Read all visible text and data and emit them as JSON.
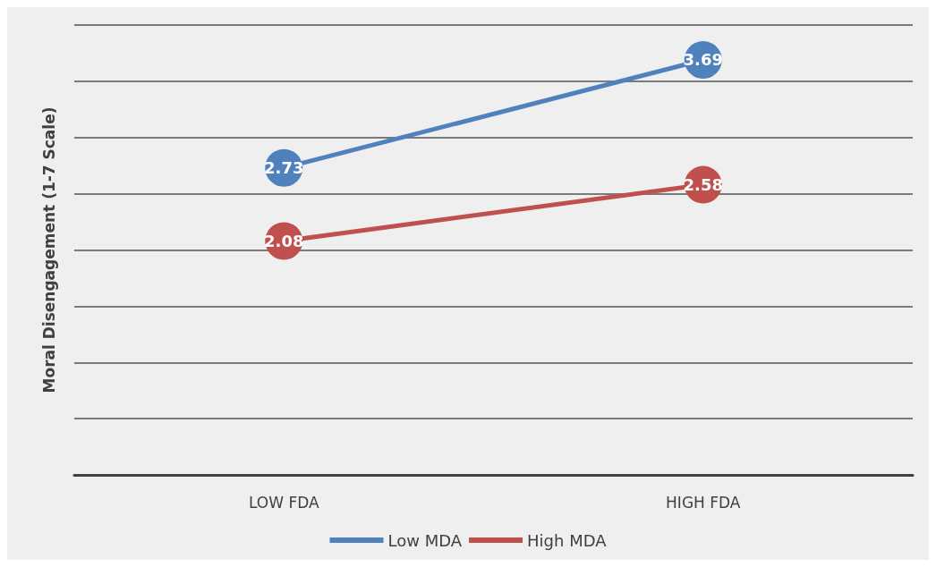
{
  "chart_data": {
    "type": "line",
    "ylabel": "Moral Disengagement (1-7 Scale)",
    "categories": [
      "LOW FDA",
      "HIGH FDA"
    ],
    "series": [
      {
        "name": "Low MDA",
        "color": "#4f81bd",
        "values": [
          2.73,
          3.69
        ]
      },
      {
        "name": "High MDA",
        "color": "#c0504d",
        "values": [
          2.08,
          2.58
        ]
      }
    ],
    "ylim": [
      0,
      4
    ],
    "yticks": [
      {
        "value": 0,
        "label": null
      },
      {
        "value": 0.5,
        "label": null
      },
      {
        "value": 1,
        "label": null
      },
      {
        "value": 1.5,
        "label": null
      },
      {
        "value": 2,
        "label": null
      },
      {
        "value": 2.5,
        "label": null
      },
      {
        "value": 3,
        "label": null
      },
      {
        "value": 3.5,
        "label": null
      },
      {
        "value": 4,
        "label": null
      }
    ],
    "tick_labels": "x",
    "grid": "y",
    "legend": "bottom",
    "marker": "circle",
    "line_style": "solid",
    "data_labels": true
  }
}
